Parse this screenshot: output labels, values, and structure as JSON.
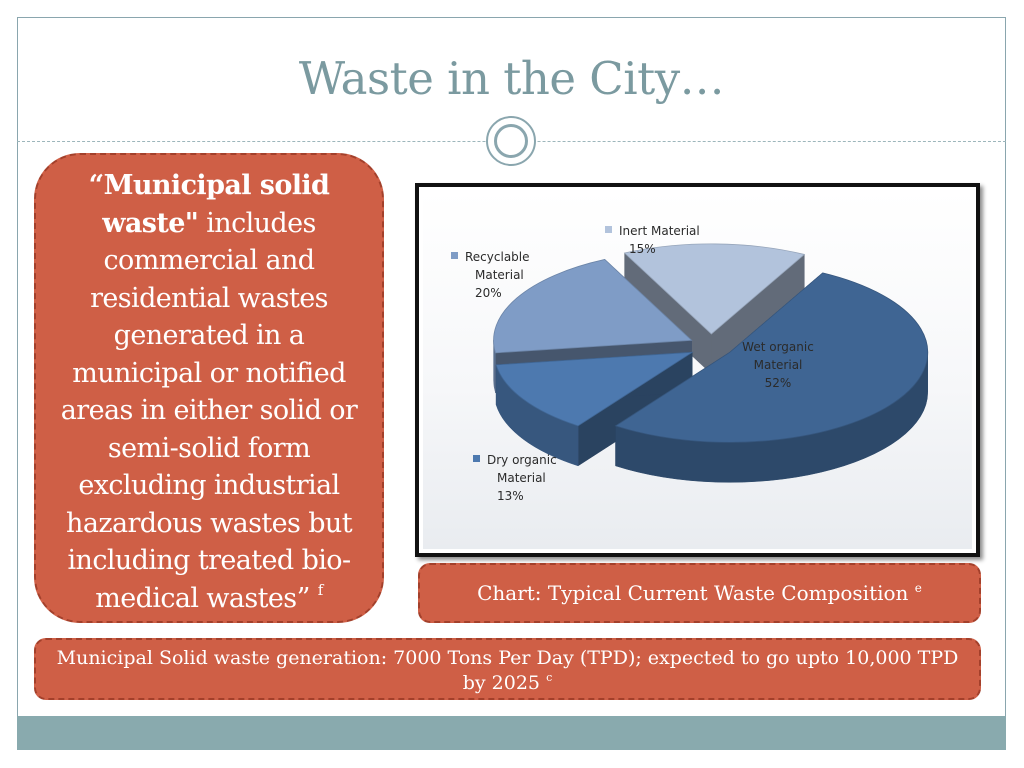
{
  "slide": {
    "title": "Waste in the City…"
  },
  "definition": {
    "quote_bold": "“Municipal solid waste\"",
    "text": " includes commercial and residential wastes generated in a municipal or notified areas in either solid or semi-solid form excluding industrial hazardous wastes but including treated bio-medical wastes”",
    "ref": "f"
  },
  "caption": {
    "text": "Chart: Typical Current Waste Composition",
    "ref": "e"
  },
  "stat": {
    "text": "Municipal Solid waste generation: 7000 Tons Per Day (TPD); expected to go upto 10,000 TPD by 2025",
    "ref": "c"
  },
  "chart_data": {
    "type": "pie",
    "title": "",
    "exploded": true,
    "three_d": true,
    "legend": "none",
    "series": [
      {
        "values": [
          52,
          13,
          20,
          15
        ],
        "categories": [
          "Wet organic Material",
          "Dry organic Material",
          "Recyclable Material",
          "Inert Material"
        ]
      }
    ],
    "slices": [
      {
        "label_lines": [
          "Wet organic",
          "Material"
        ],
        "percent_label": "52%",
        "value": 52,
        "color": "#3f6593"
      },
      {
        "label_lines": [
          "Dry organic",
          "Material"
        ],
        "percent_label": "13%",
        "value": 13,
        "color": "#4d79af"
      },
      {
        "label_lines": [
          "Recyclable",
          "Material"
        ],
        "percent_label": "20%",
        "value": 20,
        "color": "#7f9cc6"
      },
      {
        "label_lines": [
          "Inert Material"
        ],
        "percent_label": "15%",
        "value": 15,
        "color": "#b2c3dc"
      }
    ]
  },
  "colors": {
    "accent": "#cf5f46",
    "title": "#7b9aa0",
    "footer": "#89aaae"
  }
}
